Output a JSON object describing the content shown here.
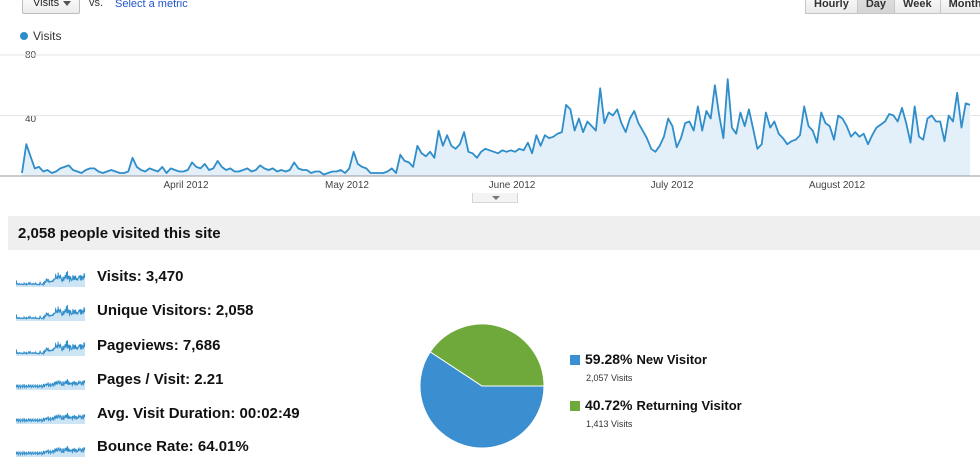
{
  "toolbar": {
    "metric_select_value": "Visits",
    "vs_label": "vs.",
    "select_metric_link": "Select a metric",
    "granularity": [
      {
        "label": "Hourly",
        "active": false
      },
      {
        "label": "Day",
        "active": true
      },
      {
        "label": "Week",
        "active": false
      },
      {
        "label": "Month",
        "active": false
      }
    ]
  },
  "colors": {
    "visits_line": "#2f8dca",
    "area_fill": "#e3f0fa",
    "new_visitor": "#3b8fd0",
    "returning_visitor": "#6fa93b"
  },
  "chart_data": {
    "type": "area",
    "legend": "Visits",
    "y_ticks": [
      "80",
      "40"
    ],
    "ylim": [
      0,
      80
    ],
    "x_tick_labels": [
      "April 2012",
      "May 2012",
      "June 2012",
      "July 2012",
      "August 2012"
    ],
    "series": [
      {
        "name": "Visits",
        "values": [
          2,
          21,
          13,
          5,
          6,
          3,
          4,
          2,
          3,
          5,
          6,
          7,
          4,
          3,
          2,
          4,
          5,
          5,
          3,
          2,
          3,
          4,
          3,
          2,
          2,
          3,
          12,
          6,
          4,
          3,
          5,
          4,
          3,
          6,
          2,
          5,
          4,
          3,
          3,
          4,
          9,
          6,
          5,
          8,
          4,
          5,
          10,
          6,
          4,
          5,
          3,
          3,
          4,
          5,
          3,
          4,
          7,
          5,
          4,
          5,
          3,
          4,
          3,
          4,
          9,
          5,
          4,
          4,
          2,
          3,
          3,
          1,
          2,
          3,
          3,
          4,
          2,
          5,
          16,
          8,
          6,
          5,
          2,
          2,
          2,
          2,
          3,
          5,
          2,
          14,
          10,
          9,
          6,
          20,
          15,
          13,
          16,
          12,
          30,
          20,
          27,
          20,
          18,
          21,
          29,
          16,
          15,
          12,
          16,
          18,
          17,
          16,
          15,
          17,
          16,
          17,
          16,
          18,
          17,
          22,
          15,
          27,
          20,
          27,
          25,
          26,
          28,
          29,
          47,
          44,
          30,
          38,
          29,
          36,
          33,
          30,
          58,
          35,
          42,
          40,
          44,
          35,
          29,
          38,
          43,
          35,
          30,
          25,
          18,
          16,
          20,
          26,
          38,
          33,
          19,
          25,
          35,
          36,
          30,
          46,
          30,
          43,
          38,
          60,
          40,
          25,
          64,
          32,
          28,
          42,
          33,
          44,
          31,
          18,
          21,
          42,
          32,
          36,
          28,
          25,
          21,
          23,
          24,
          27,
          46,
          33,
          30,
          22,
          42,
          35,
          33,
          24,
          40,
          38,
          33,
          26,
          29,
          26,
          28,
          21,
          27,
          32,
          34,
          36,
          41,
          40,
          36,
          45,
          35,
          22,
          46,
          26,
          24,
          38,
          40,
          36,
          36,
          23,
          40,
          36,
          55,
          32,
          48,
          47
        ]
      }
    ]
  },
  "summary": {
    "title": "2,058 people visited this site",
    "metrics": [
      {
        "label": "Visits: 3,470"
      },
      {
        "label": "Unique Visitors: 2,058"
      },
      {
        "label": "Pageviews: 7,686"
      },
      {
        "label": "Pages / Visit: 2.21"
      },
      {
        "label": "Avg. Visit Duration: 00:02:49"
      },
      {
        "label": "Bounce Rate: 64.01%"
      }
    ],
    "pie": {
      "new_fraction": 0.5928,
      "new": {
        "pct": "59.28%",
        "label": "New Visitor",
        "visits": "2,057 Visits"
      },
      "returning": {
        "pct": "40.72%",
        "label": "Returning Visitor",
        "visits": "1,413 Visits"
      }
    }
  }
}
